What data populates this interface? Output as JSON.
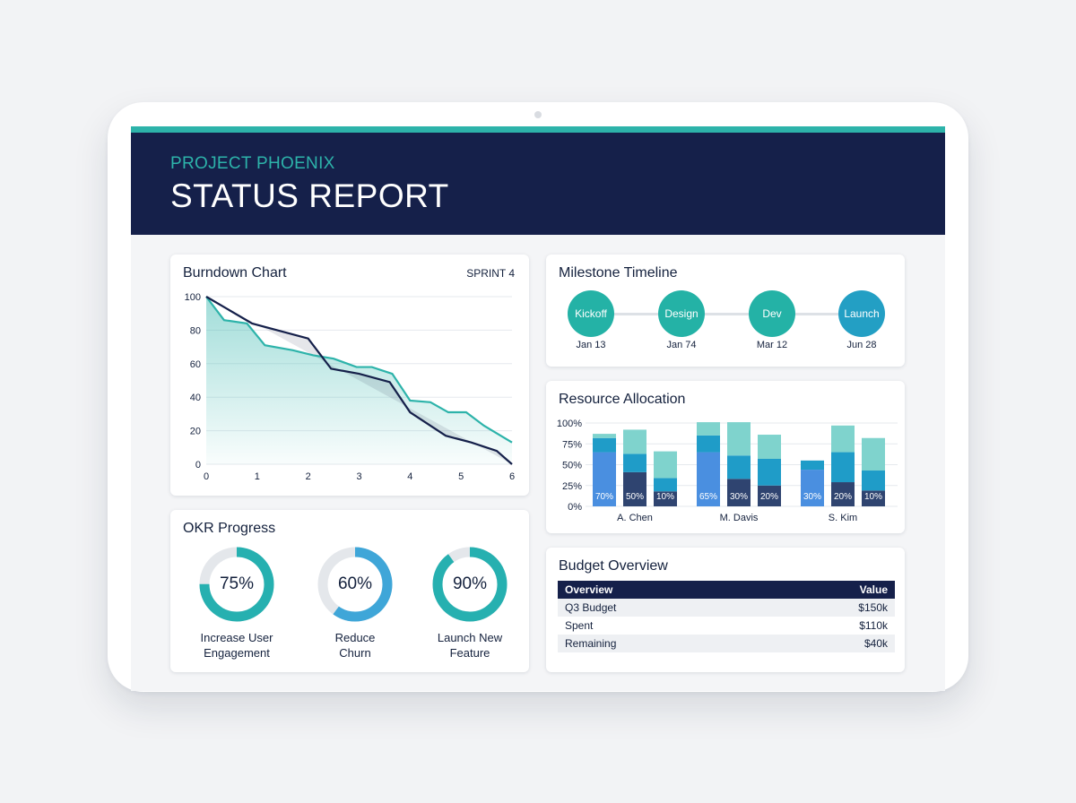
{
  "header": {
    "subtitle": "PROJECT PHOENIX",
    "title": "STATUS REPORT"
  },
  "burndown": {
    "title": "Burndown Chart",
    "sprint_label": "SPRINT 4"
  },
  "okr": {
    "title": "OKR Progress",
    "items": [
      {
        "value": "75%",
        "progress": 0.75,
        "label_line1": "Increase User",
        "label_line2": "Engagement"
      },
      {
        "value": "60%",
        "progress": 0.6,
        "label_line1": "Reduce",
        "label_line2": "Churn"
      },
      {
        "value": "90%",
        "progress": 0.9,
        "label_line1": "Launch New",
        "label_line2": "Feature"
      }
    ]
  },
  "milestones": {
    "title": "Milestone Timeline",
    "items": [
      {
        "name": "Kickoff",
        "date": "Jan 13"
      },
      {
        "name": "Design",
        "date": "Jan 74"
      },
      {
        "name": "Dev",
        "date": "Mar 12"
      },
      {
        "name": "Launch",
        "date": "Jun 28"
      }
    ]
  },
  "resources": {
    "title": "Resource Allocation"
  },
  "budget": {
    "title": "Budget Overview",
    "columns": [
      "Overview",
      "Value"
    ],
    "rows": [
      {
        "label": "Q3 Budget",
        "value": "$150k"
      },
      {
        "label": "Spent",
        "value": "$110k"
      },
      {
        "label": "Remaining",
        "value": "$40k"
      }
    ]
  },
  "colors": {
    "navy": "#15204a",
    "teal": "#2db3aa",
    "blue": "#4a8fe0",
    "light_teal": "#7fd3cd",
    "mid_blue": "#1f9cc8",
    "slate": "#2f4470"
  },
  "chart_data": [
    {
      "type": "line",
      "title": "Burndown Chart",
      "xlim": [
        0,
        6
      ],
      "ylim": [
        0,
        100
      ],
      "x_ticks": [
        0,
        1,
        2,
        3,
        4,
        5,
        6
      ],
      "y_ticks": [
        0,
        20,
        40,
        60,
        80,
        100
      ],
      "grid": true,
      "series": [
        {
          "color": "#15204a",
          "x": [
            0,
            0.9,
            2,
            2.45,
            3,
            3.6,
            4,
            4.7,
            5.2,
            5.7,
            6
          ],
          "y": [
            100,
            84,
            75,
            57,
            54,
            49,
            31,
            17,
            13,
            8,
            0
          ]
        },
        {
          "color": "#2db3aa",
          "x": [
            0,
            0.35,
            0.8,
            1.15,
            1.7,
            2.1,
            2.5,
            2.95,
            3.25,
            3.65,
            4,
            4.4,
            4.75,
            5.1,
            5.45,
            6
          ],
          "y": [
            100,
            86,
            84,
            71,
            68,
            65,
            63,
            58,
            58,
            54,
            38,
            37,
            31,
            31,
            23,
            13
          ]
        }
      ]
    },
    {
      "type": "bar",
      "title": "Resource Allocation",
      "stacked": true,
      "categories": [
        "A. Chen",
        "M. Davis",
        "S. Kim"
      ],
      "y_ticks": [
        "0%",
        "25%",
        "50%",
        "75%",
        "100%"
      ],
      "ylim": [
        0,
        100
      ],
      "groups": [
        {
          "category": "A. Chen",
          "bars": [
            {
              "segments": [
                65,
                17,
                5
              ],
              "label": "70%"
            },
            {
              "segments": [
                41,
                22,
                29
              ],
              "label": "50%"
            },
            {
              "segments": [
                18,
                16,
                32
              ],
              "label": "10%"
            }
          ]
        },
        {
          "category": "M. Davis",
          "bars": [
            {
              "segments": [
                65,
                20,
                16
              ],
              "label": "65%"
            },
            {
              "segments": [
                33,
                28,
                40
              ],
              "label": "30%"
            },
            {
              "segments": [
                25,
                32,
                29
              ],
              "label": "20%"
            }
          ]
        },
        {
          "category": "S. Kim",
          "bars": [
            {
              "segments": [
                44,
                11,
                0
              ],
              "label": "30%"
            },
            {
              "segments": [
                29,
                36,
                32
              ],
              "label": "20%"
            },
            {
              "segments": [
                19,
                24,
                39
              ],
              "label": "10%"
            }
          ]
        }
      ],
      "segment_colors": [
        "#4a8fe0",
        "#1f9cc8",
        "#7fd3cd"
      ],
      "segment_colors_alt": [
        "#2f4470",
        "#1f9cc8",
        "#7fd3cd"
      ]
    }
  ]
}
